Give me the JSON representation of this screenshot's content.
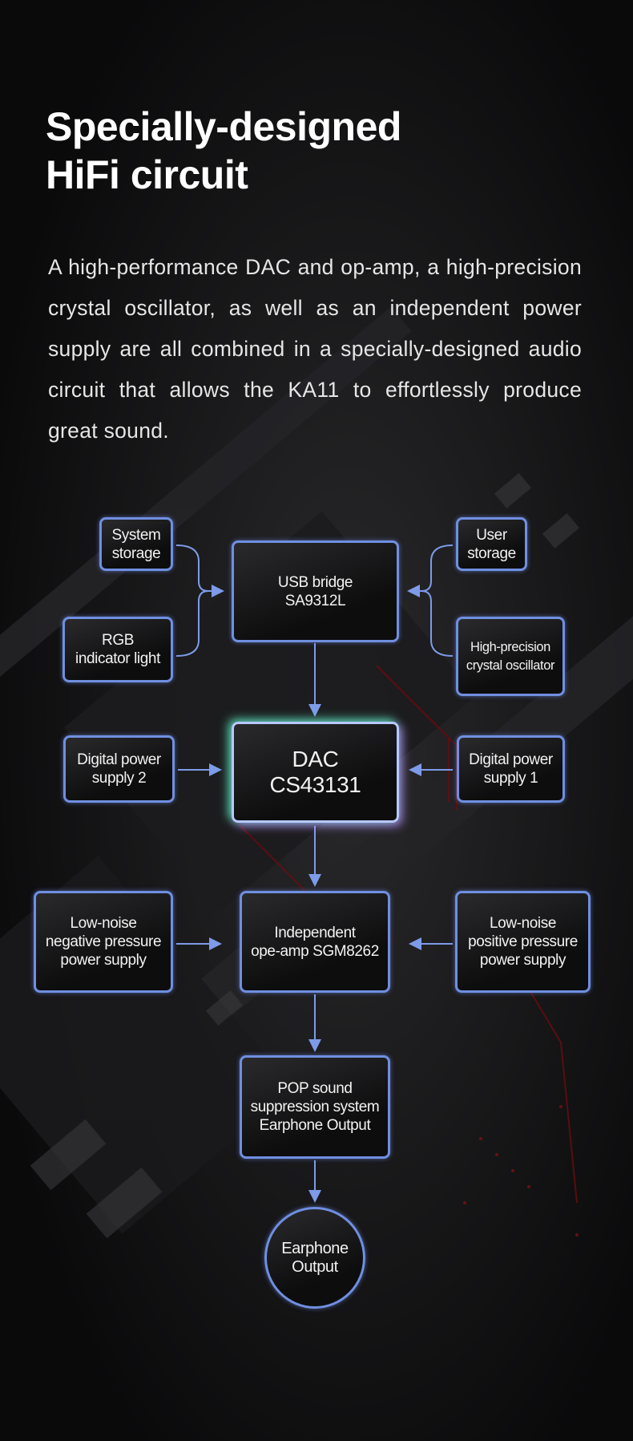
{
  "title": {
    "line1": "Specially-designed",
    "line2": "HiFi circuit"
  },
  "description": "A high-performance DAC and op-amp, a high-precision crystal oscillator, as well as an independent power supply are all combined in a specially-designed audio circuit that allows the KA11 to effortlessly produce great sound.",
  "diagram": {
    "system_storage": "System\nstorage",
    "rgb_light": "RGB\nindicator light",
    "usb_bridge": "USB bridge\nSA9312L",
    "user_storage": "User\nstorage",
    "crystal": "High-precision\ncrystal oscillator",
    "dac": "DAC\nCS43131",
    "digital_power_2": "Digital power\nsupply 2",
    "digital_power_1": "Digital power\nsupply 1",
    "negative_supply": "Low-noise\nnegative pressure\npower supply",
    "opamp": "Independent\nope-amp SGM8262",
    "positive_supply": "Low-noise\npositive pressure\npower supply",
    "pop": "POP sound\nsuppression system\nEarphone Output",
    "output": "Earphone\nOutput"
  },
  "colors": {
    "box_border": "#6f8fe0",
    "background": "#0b0b0c",
    "dac_glow_left": "#5affc8",
    "dac_glow_right": "#be8cff"
  }
}
